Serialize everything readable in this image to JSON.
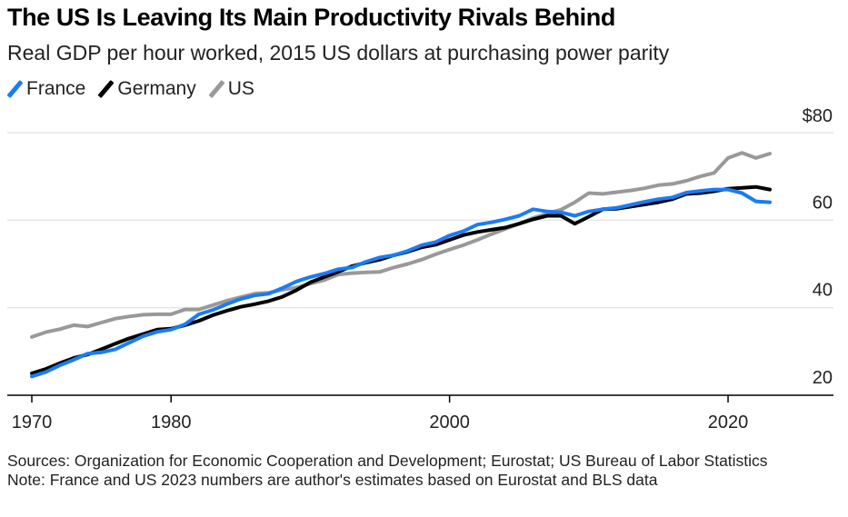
{
  "chart_data": {
    "type": "line",
    "title": "The US Is Leaving Its Main Productivity Rivals Behind",
    "subtitle": "Real GDP per hour worked, 2015 US dollars at purchasing power parity",
    "xlabel": "",
    "ylabel": "",
    "xlim": [
      1970,
      2023
    ],
    "ylim": [
      20,
      80
    ],
    "y_ticks": [
      20,
      40,
      60,
      80
    ],
    "y_tick_labels": [
      "20",
      "40",
      "60",
      "$80"
    ],
    "x_ticks": [
      1970,
      1980,
      2000,
      2020
    ],
    "x_tick_labels": [
      "1970",
      "1980",
      "2000",
      "2020"
    ],
    "grid": true,
    "legend_position": "top-left",
    "x": [
      1970,
      1971,
      1972,
      1973,
      1974,
      1975,
      1976,
      1977,
      1978,
      1979,
      1980,
      1981,
      1982,
      1983,
      1984,
      1985,
      1986,
      1987,
      1988,
      1989,
      1990,
      1991,
      1992,
      1993,
      1994,
      1995,
      1996,
      1997,
      1998,
      1999,
      2000,
      2001,
      2002,
      2003,
      2004,
      2005,
      2006,
      2007,
      2008,
      2009,
      2010,
      2011,
      2012,
      2013,
      2014,
      2015,
      2016,
      2017,
      2018,
      2019,
      2020,
      2021,
      2022,
      2023
    ],
    "series": [
      {
        "name": "France",
        "color": "#1a7cf5",
        "values": [
          24.3,
          25.3,
          26.8,
          28.1,
          29.5,
          29.8,
          30.5,
          32.0,
          33.5,
          34.5,
          35.0,
          36.2,
          38.5,
          39.5,
          40.8,
          42.0,
          42.8,
          43.2,
          44.5,
          46.0,
          47.0,
          47.8,
          48.8,
          49.2,
          50.5,
          51.5,
          52.0,
          53.0,
          54.3,
          55.0,
          56.5,
          57.5,
          59.0,
          59.5,
          60.2,
          61.0,
          62.5,
          62.0,
          61.8,
          61.0,
          62.0,
          62.5,
          62.8,
          63.5,
          64.2,
          64.8,
          65.2,
          66.3,
          66.7,
          67.0,
          67.0,
          66.2,
          64.3,
          64.1
        ]
      },
      {
        "name": "Germany",
        "color": "#000000",
        "values": [
          25.0,
          26.0,
          27.3,
          28.5,
          29.3,
          30.5,
          31.8,
          33.0,
          34.0,
          35.0,
          35.2,
          36.0,
          37.0,
          38.3,
          39.3,
          40.2,
          40.8,
          41.5,
          42.5,
          44.0,
          45.8,
          47.0,
          48.2,
          49.5,
          50.3,
          51.0,
          52.0,
          52.8,
          53.8,
          54.4,
          55.5,
          56.6,
          57.3,
          57.8,
          58.3,
          59.2,
          60.2,
          61.0,
          61.0,
          59.2,
          60.8,
          62.5,
          62.6,
          63.1,
          63.6,
          64.1,
          64.8,
          66.0,
          66.2,
          66.6,
          67.2,
          67.4,
          67.6,
          67.0
        ]
      },
      {
        "name": "US",
        "color": "#999999",
        "values": [
          33.3,
          34.4,
          35.1,
          36.0,
          35.7,
          36.6,
          37.5,
          38.0,
          38.4,
          38.5,
          38.5,
          39.6,
          39.6,
          40.6,
          41.6,
          42.4,
          43.2,
          43.4,
          44.1,
          44.6,
          45.5,
          46.3,
          47.6,
          47.9,
          48.1,
          48.2,
          49.2,
          50.0,
          51.0,
          52.2,
          53.3,
          54.3,
          55.5,
          56.8,
          58.0,
          59.2,
          60.5,
          61.5,
          62.4,
          64.1,
          66.2,
          66.0,
          66.4,
          66.8,
          67.3,
          68.0,
          68.3,
          69.0,
          70.0,
          70.8,
          74.2,
          75.4,
          74.2,
          75.2
        ]
      }
    ]
  },
  "footer": {
    "sources": "Sources: Organization for Economic Cooperation and Development; Eurostat; US Bureau of Labor Statistics",
    "note": "Note: France and US 2023 numbers are author's estimates based on Eurostat and BLS data"
  }
}
